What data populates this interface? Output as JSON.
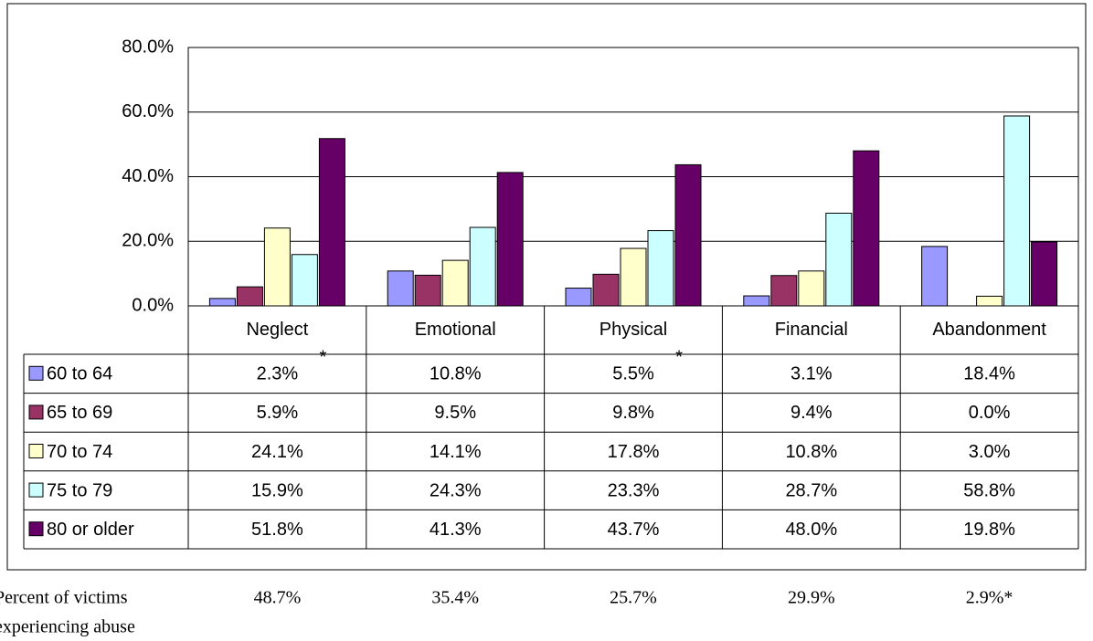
{
  "chart_data": {
    "type": "bar",
    "categories": [
      "Neglect",
      "Emotional",
      "Physical",
      "Financial",
      "Abandonment"
    ],
    "series": [
      {
        "name": "60 to 64",
        "color": "#9999ff",
        "values": [
          2.3,
          10.8,
          5.5,
          3.1,
          18.4
        ],
        "value_labels": [
          "2.3%",
          "10.8%",
          "5.5%",
          "3.1%",
          "18.4%"
        ]
      },
      {
        "name": "65 to 69",
        "color": "#993366",
        "values": [
          5.9,
          9.5,
          9.8,
          9.4,
          0.0
        ],
        "value_labels": [
          "5.9%",
          "9.5%",
          "9.8%",
          "9.4%",
          "0.0%"
        ]
      },
      {
        "name": "70 to 74",
        "color": "#ffffcc",
        "values": [
          24.1,
          14.1,
          17.8,
          10.8,
          3.0
        ],
        "value_labels": [
          "24.1%",
          "14.1%",
          "17.8%",
          "10.8%",
          "3.0%"
        ]
      },
      {
        "name": "75 to 79",
        "color": "#ccffff",
        "values": [
          15.9,
          24.3,
          23.3,
          28.7,
          58.8
        ],
        "value_labels": [
          "15.9%",
          "24.3%",
          "23.3%",
          "28.7%",
          "58.8%"
        ]
      },
      {
        "name": "80 or older",
        "color": "#660066",
        "values": [
          51.8,
          41.3,
          43.7,
          48.0,
          19.8
        ],
        "value_labels": [
          "51.8%",
          "41.3%",
          "43.7%",
          "48.0%",
          "19.8%"
        ]
      }
    ],
    "ylim": [
      0,
      80
    ],
    "yticks": [
      {
        "value": 0,
        "label": "0.0%"
      },
      {
        "value": 20,
        "label": "20.0%"
      },
      {
        "value": 40,
        "label": "40.0%"
      },
      {
        "value": 60,
        "label": "60.0%"
      },
      {
        "value": 80,
        "label": "80.0%"
      }
    ],
    "grid": true,
    "annotations": [
      {
        "text": "*",
        "category": "Neglect",
        "series": "60 to 64"
      },
      {
        "text": "*",
        "category": "Physical",
        "series": "60 to 64"
      }
    ],
    "summary": {
      "label_lines": [
        "Percent of victims",
        "experiencing abuse"
      ],
      "values": [
        48.7,
        35.4,
        25.7,
        29.9,
        2.9
      ],
      "value_labels": [
        "48.7%",
        "35.4%",
        "25.7%",
        "29.9%",
        "2.9%*"
      ]
    }
  }
}
